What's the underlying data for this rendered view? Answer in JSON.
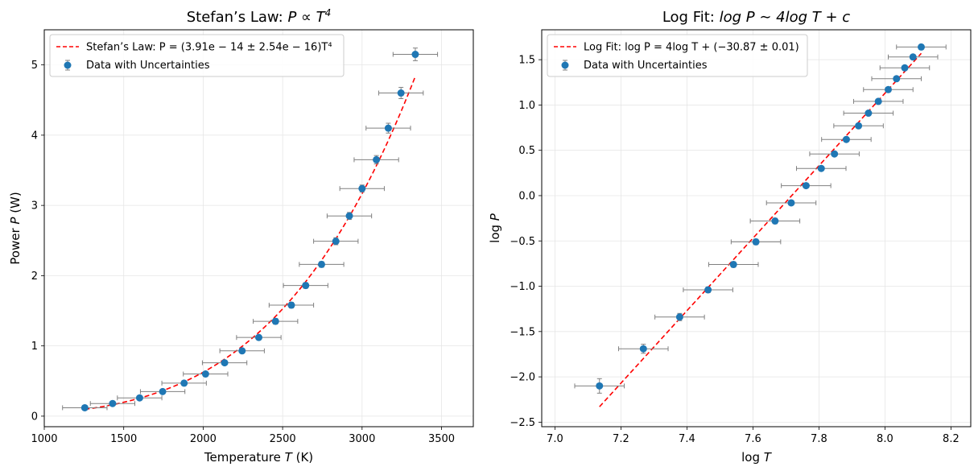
{
  "chart_data": [
    {
      "type": "scatter",
      "title": "Stefan’s Law: P ∝ T⁴",
      "title_parts": {
        "prefix": "Stefan’s Law: ",
        "expr": "P ∝ T",
        "exp": "4"
      },
      "xlabel": "Temperature T (K)",
      "xlabel_parts": {
        "prefix": "Temperature ",
        "var": "T",
        "suffix": " (K)"
      },
      "ylabel": "Power P (W)",
      "ylabel_parts": {
        "prefix": "Power ",
        "var": "P",
        "suffix": " (W)"
      },
      "xlim": [
        1000,
        3700
      ],
      "ylim": [
        -0.15,
        5.5
      ],
      "xticks": [
        1000,
        1500,
        2000,
        2500,
        3000,
        3500
      ],
      "xtick_labels": [
        "1000",
        "1500",
        "2000",
        "2500",
        "3000",
        "3500"
      ],
      "yticks": [
        0,
        1,
        2,
        3,
        4,
        5
      ],
      "ytick_labels": [
        "0",
        "1",
        "2",
        "3",
        "4",
        "5"
      ],
      "grid": true,
      "legend_position": "top-left",
      "legend": [
        {
          "label": "Stefan’s Law: P = (3.91e − 14 ± 2.54e − 16)T⁴",
          "style": "dashed-line",
          "color": "#ff0000"
        },
        {
          "label": "Data with Uncertainties",
          "style": "marker-errorbar",
          "color": "#1f77b4"
        }
      ],
      "series": [
        {
          "name": "Data with Uncertainties",
          "kind": "points",
          "x": [
            1255,
            1430,
            1600,
            1745,
            1880,
            2015,
            2135,
            2245,
            2350,
            2455,
            2555,
            2645,
            2745,
            2835,
            2920,
            3000,
            3090,
            3165,
            3245,
            3335
          ],
          "y": [
            0.12,
            0.18,
            0.26,
            0.35,
            0.47,
            0.6,
            0.76,
            0.93,
            1.12,
            1.35,
            1.58,
            1.86,
            2.16,
            2.49,
            2.85,
            3.24,
            3.65,
            4.1,
            4.6,
            5.15
          ],
          "x_err": 140,
          "y_err": [
            0.02,
            0.02,
            0.02,
            0.03,
            0.03,
            0.03,
            0.03,
            0.03,
            0.03,
            0.04,
            0.04,
            0.04,
            0.04,
            0.05,
            0.05,
            0.05,
            0.06,
            0.07,
            0.08,
            0.09
          ],
          "marker_color": "#1f77b4",
          "errorbar_color": "#808080"
        },
        {
          "name": "Stefan’s Law fit",
          "kind": "fit_power",
          "coefficient": 3.91e-14,
          "exponent": 4,
          "x_range": [
            1255,
            3335
          ],
          "color": "#ff0000"
        }
      ]
    },
    {
      "type": "scatter",
      "title": "Log Fit: log P ∼ 4log T + c",
      "title_parts": {
        "prefix": "Log Fit: ",
        "expr": "log P ∼ 4log T + c"
      },
      "xlabel": "log T",
      "xlabel_parts": {
        "prefix": "log ",
        "var": "T",
        "suffix": ""
      },
      "ylabel": "log P",
      "ylabel_parts": {
        "prefix": "log ",
        "var": "P",
        "suffix": ""
      },
      "xlim": [
        6.96,
        8.26
      ],
      "ylim": [
        -2.55,
        1.83
      ],
      "xticks": [
        7.0,
        7.2,
        7.4,
        7.6,
        7.8,
        8.0,
        8.2
      ],
      "xtick_labels": [
        "7.0",
        "7.2",
        "7.4",
        "7.6",
        "7.8",
        "8.0",
        "8.2"
      ],
      "yticks": [
        -2.5,
        -2.0,
        -1.5,
        -1.0,
        -0.5,
        0.0,
        0.5,
        1.0,
        1.5
      ],
      "ytick_labels": [
        "−2.5",
        "−2.0",
        "−1.5",
        "−1.0",
        "−0.5",
        "0.0",
        "0.5",
        "1.0",
        "1.5"
      ],
      "grid": true,
      "legend_position": "top-left",
      "legend": [
        {
          "label": "Log Fit: log P = 4log T + (−30.87 ± 0.01)",
          "style": "dashed-line",
          "color": "#ff0000"
        },
        {
          "label": "Data with Uncertainties",
          "style": "marker-errorbar",
          "color": "#1f77b4"
        }
      ],
      "series": [
        {
          "name": "Data with Uncertainties",
          "kind": "points",
          "x": [
            7.135,
            7.268,
            7.378,
            7.464,
            7.541,
            7.609,
            7.667,
            7.716,
            7.761,
            7.807,
            7.847,
            7.883,
            7.92,
            7.95,
            7.98,
            8.01,
            8.035,
            8.06,
            8.085,
            8.11
          ],
          "y": [
            -2.1,
            -1.69,
            -1.34,
            -1.04,
            -0.76,
            -0.51,
            -0.28,
            -0.08,
            0.11,
            0.3,
            0.46,
            0.62,
            0.77,
            0.91,
            1.04,
            1.17,
            1.29,
            1.41,
            1.53,
            1.64
          ],
          "x_err": 0.075,
          "y_err": [
            0.08,
            0.05,
            0.04,
            0.03,
            0.03,
            0.03,
            0.03,
            0.02,
            0.02,
            0.02,
            0.02,
            0.02,
            0.02,
            0.02,
            0.02,
            0.02,
            0.02,
            0.02,
            0.02,
            0.02
          ],
          "marker_color": "#1f77b4",
          "errorbar_color": "#808080"
        },
        {
          "name": "Log Fit",
          "kind": "fit_linear",
          "slope": 4,
          "intercept": -30.87,
          "x_range": [
            7.135,
            8.11
          ],
          "color": "#ff0000"
        }
      ]
    }
  ]
}
